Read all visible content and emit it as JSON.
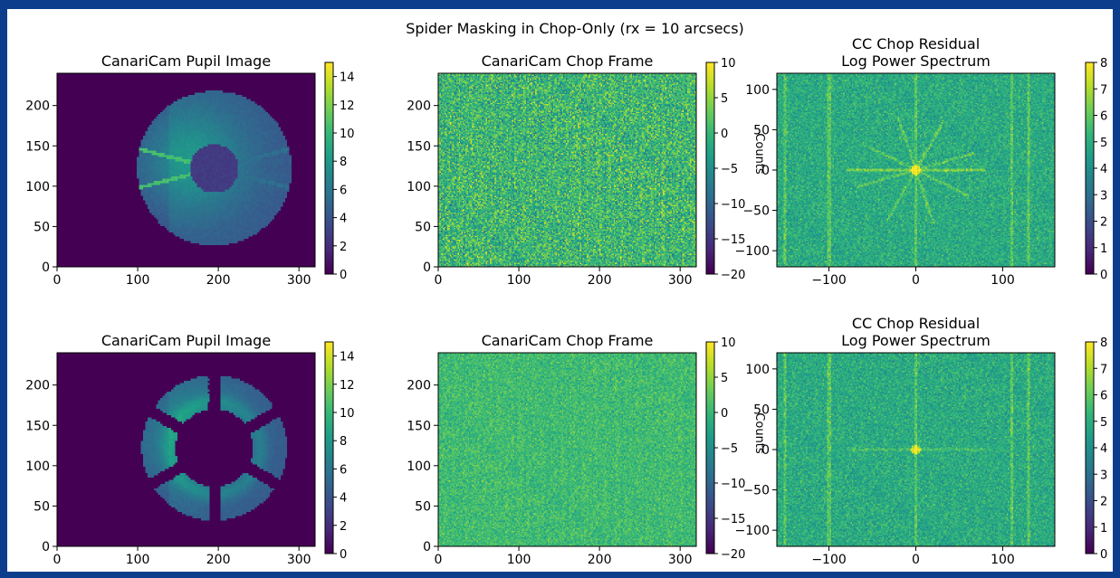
{
  "figure": {
    "suptitle": "Spider Masking in Chop-Only (rx = 10 arcsecs)"
  },
  "colormap": {
    "name": "viridis",
    "stops": [
      "#440154",
      "#482878",
      "#3e4989",
      "#31688e",
      "#26828e",
      "#1f9e89",
      "#35b779",
      "#6ece58",
      "#b5de2b",
      "#fde725"
    ]
  },
  "chart_data": [
    {
      "id": "r1c1",
      "type": "heatmap",
      "title": [
        "CanariCam Pupil Image"
      ],
      "image": "pupil-unmasked",
      "xlim": [
        0,
        320
      ],
      "ylim": [
        0,
        240
      ],
      "xticks": [
        0,
        100,
        200,
        300
      ],
      "yticks": [
        0,
        50,
        100,
        150,
        200
      ],
      "colorbar": {
        "vmin": 0,
        "vmax": 15,
        "ticks": [
          0,
          2,
          4,
          6,
          8,
          10,
          12,
          14
        ],
        "label": ""
      }
    },
    {
      "id": "r1c2",
      "type": "heatmap",
      "title": [
        "CanariCam Chop Frame"
      ],
      "image": "chop-noise-strong",
      "xlim": [
        0,
        320
      ],
      "ylim": [
        0,
        240
      ],
      "xticks": [
        0,
        100,
        200,
        300
      ],
      "yticks": [
        0,
        50,
        100,
        150,
        200
      ],
      "colorbar": {
        "vmin": -20,
        "vmax": 10,
        "ticks": [
          -20,
          -15,
          -10,
          -5,
          0,
          5,
          10
        ],
        "label": "Counts"
      }
    },
    {
      "id": "r1c3",
      "type": "heatmap",
      "title": [
        "CC Chop Residual",
        "Log Power Spectrum"
      ],
      "image": "spectrum-spiders",
      "xlim": [
        -160,
        160
      ],
      "ylim": [
        -120,
        120
      ],
      "xticks": [
        -100,
        0,
        100
      ],
      "yticks": [
        -100,
        -50,
        0,
        50,
        100
      ],
      "colorbar": {
        "vmin": 0,
        "vmax": 8,
        "ticks": [
          0,
          1,
          2,
          3,
          4,
          5,
          6,
          7,
          8
        ],
        "label": ""
      }
    },
    {
      "id": "r2c1",
      "type": "heatmap",
      "title": [
        "CanariCam Pupil Image"
      ],
      "image": "pupil-masked",
      "xlim": [
        0,
        320
      ],
      "ylim": [
        0,
        240
      ],
      "xticks": [
        0,
        100,
        200,
        300
      ],
      "yticks": [
        0,
        50,
        100,
        150,
        200
      ],
      "colorbar": {
        "vmin": 0,
        "vmax": 15,
        "ticks": [
          0,
          2,
          4,
          6,
          8,
          10,
          12,
          14
        ],
        "label": ""
      }
    },
    {
      "id": "r2c2",
      "type": "heatmap",
      "title": [
        "CanariCam Chop Frame"
      ],
      "image": "chop-noise-weak",
      "xlim": [
        0,
        320
      ],
      "ylim": [
        0,
        240
      ],
      "xticks": [
        0,
        100,
        200,
        300
      ],
      "yticks": [
        0,
        50,
        100,
        150,
        200
      ],
      "colorbar": {
        "vmin": -20,
        "vmax": 10,
        "ticks": [
          -20,
          -15,
          -10,
          -5,
          0,
          5,
          10
        ],
        "label": "Counts"
      }
    },
    {
      "id": "r2c3",
      "type": "heatmap",
      "title": [
        "CC Chop Residual",
        "Log Power Spectrum"
      ],
      "image": "spectrum-clean",
      "xlim": [
        -160,
        160
      ],
      "ylim": [
        -120,
        120
      ],
      "xticks": [
        -100,
        0,
        100
      ],
      "yticks": [
        -100,
        -50,
        0,
        50,
        100
      ],
      "colorbar": {
        "vmin": 0,
        "vmax": 8,
        "ticks": [
          0,
          1,
          2,
          3,
          4,
          5,
          6,
          7,
          8
        ],
        "label": ""
      }
    }
  ]
}
